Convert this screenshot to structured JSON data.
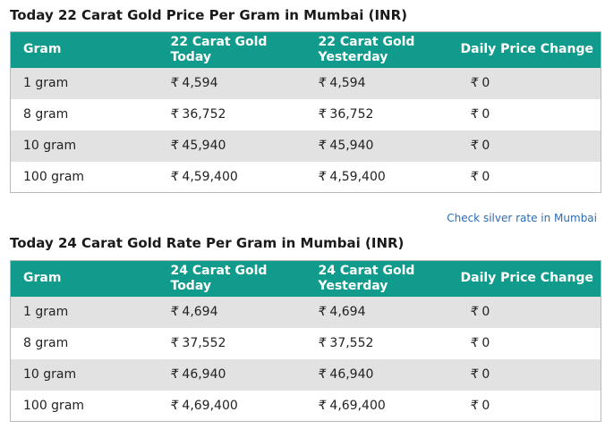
{
  "currency_symbol": "₹",
  "colors": {
    "header_bg": "#109b8c",
    "row_alt": "#e2e2e2",
    "link": "#2c6cb4"
  },
  "section22": {
    "title": "Today 22 Carat Gold Price Per Gram in Mumbai (INR)",
    "headers": [
      "Gram",
      "22 Carat Gold Today",
      "22 Carat Gold Yesterday",
      "Daily Price Change"
    ],
    "rows": [
      {
        "gram": "1 gram",
        "today": "4,594",
        "yesterday": "4,594",
        "change": "0"
      },
      {
        "gram": "8 gram",
        "today": "36,752",
        "yesterday": "36,752",
        "change": "0"
      },
      {
        "gram": "10 gram",
        "today": "45,940",
        "yesterday": "45,940",
        "change": "0"
      },
      {
        "gram": "100 gram",
        "today": "4,59,400",
        "yesterday": "4,59,400",
        "change": "0"
      }
    ]
  },
  "silver_link": "Check silver rate in Mumbai",
  "section24": {
    "title": "Today 24 Carat Gold Rate Per Gram in Mumbai (INR)",
    "headers": [
      "Gram",
      "24 Carat Gold Today",
      "24 Carat Gold Yesterday",
      "Daily Price Change"
    ],
    "rows": [
      {
        "gram": "1 gram",
        "today": "4,694",
        "yesterday": "4,694",
        "change": "0"
      },
      {
        "gram": "8 gram",
        "today": "37,552",
        "yesterday": "37,552",
        "change": "0"
      },
      {
        "gram": "10 gram",
        "today": "46,940",
        "yesterday": "46,940",
        "change": "0"
      },
      {
        "gram": "100 gram",
        "today": "4,69,400",
        "yesterday": "4,69,400",
        "change": "0"
      }
    ]
  }
}
